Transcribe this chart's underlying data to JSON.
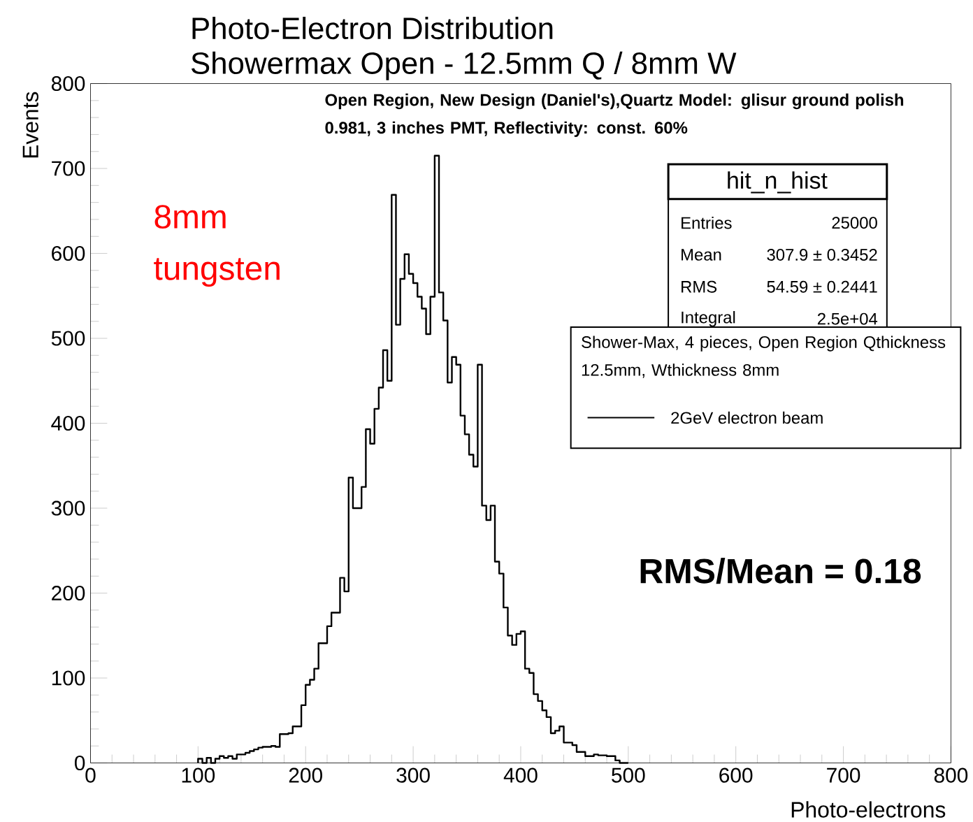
{
  "chart_data": {
    "type": "histogram",
    "title": "Photo-Electron Distribution",
    "subtitle": "Showermax Open - 12.5mm Q / 8mm W",
    "xlabel": "Photo-electrons",
    "ylabel": "Events",
    "legend_title": "Shower-Max, 4 pieces, Open Region Qthickness 12.5mm, Wthickness 8mm",
    "annotations": [
      "Open Region, New Design (Daniel's),Quartz Model: glisur ground polish 0.981, 3 inches PMT, Reflectivity: const. 60%",
      "hit_n_hist",
      "Entries",
      "25000",
      "Mean",
      "307.9 ± 0.3452",
      "RMS",
      "54.59 ± 0.2441",
      "Integral",
      "2.5e+04",
      "8mm tungsten",
      "RMS/Mean = 0.18"
    ],
    "bins": [
      100,
      104,
      108,
      112,
      116,
      120,
      124,
      128,
      132,
      136,
      140,
      144,
      148,
      152,
      156,
      160,
      164,
      168,
      172,
      176,
      180,
      184,
      188,
      192,
      196,
      200,
      204,
      208,
      212,
      216,
      220,
      224,
      228,
      232,
      236,
      240,
      244,
      248,
      252,
      256,
      260,
      264,
      268,
      272,
      276,
      280,
      284,
      288,
      292,
      296,
      300,
      304,
      308,
      312,
      316,
      320,
      324,
      328,
      332,
      336,
      340,
      344,
      348,
      352,
      356,
      360,
      364,
      368,
      372,
      376,
      380,
      384,
      388,
      392,
      396,
      400,
      404,
      408,
      412,
      416,
      420,
      424,
      428,
      432,
      436,
      440,
      444,
      448,
      452,
      456,
      460,
      464,
      468,
      472,
      476,
      480,
      484,
      488,
      492,
      496,
      500
    ],
    "series": [
      {
        "name": "2GeV electron beam",
        "color": "#000000",
        "values": [
          5,
          0,
          6,
          0,
          5,
          8,
          6,
          8,
          5,
          10,
          10,
          12,
          14,
          16,
          18,
          19,
          19,
          20,
          19,
          34,
          34,
          35,
          43,
          43,
          68,
          92,
          98,
          111,
          141,
          141,
          161,
          177,
          177,
          218,
          202,
          336,
          300,
          300,
          325,
          393,
          376,
          417,
          442,
          486,
          450,
          669,
          516,
          570,
          599,
          576,
          565,
          549,
          535,
          505,
          549,
          715,
          554,
          521,
          448,
          478,
          469,
          409,
          387,
          363,
          349,
          469,
          303,
          286,
          303,
          237,
          223,
          183,
          150,
          139,
          152,
          155,
          111,
          106,
          81,
          73,
          62,
          54,
          35,
          38,
          43,
          24,
          24,
          21,
          13,
          13,
          8,
          8,
          10,
          9,
          9,
          8,
          8,
          3,
          0,
          0
        ]
      }
    ],
    "xlim": [
      0,
      800
    ],
    "ylim": [
      0,
      800
    ],
    "xticks": [
      0,
      100,
      200,
      300,
      400,
      500,
      600,
      700,
      800
    ],
    "yticks": [
      0,
      100,
      200,
      300,
      400,
      500,
      600,
      700,
      800
    ],
    "legend": "top right",
    "grid": false
  }
}
